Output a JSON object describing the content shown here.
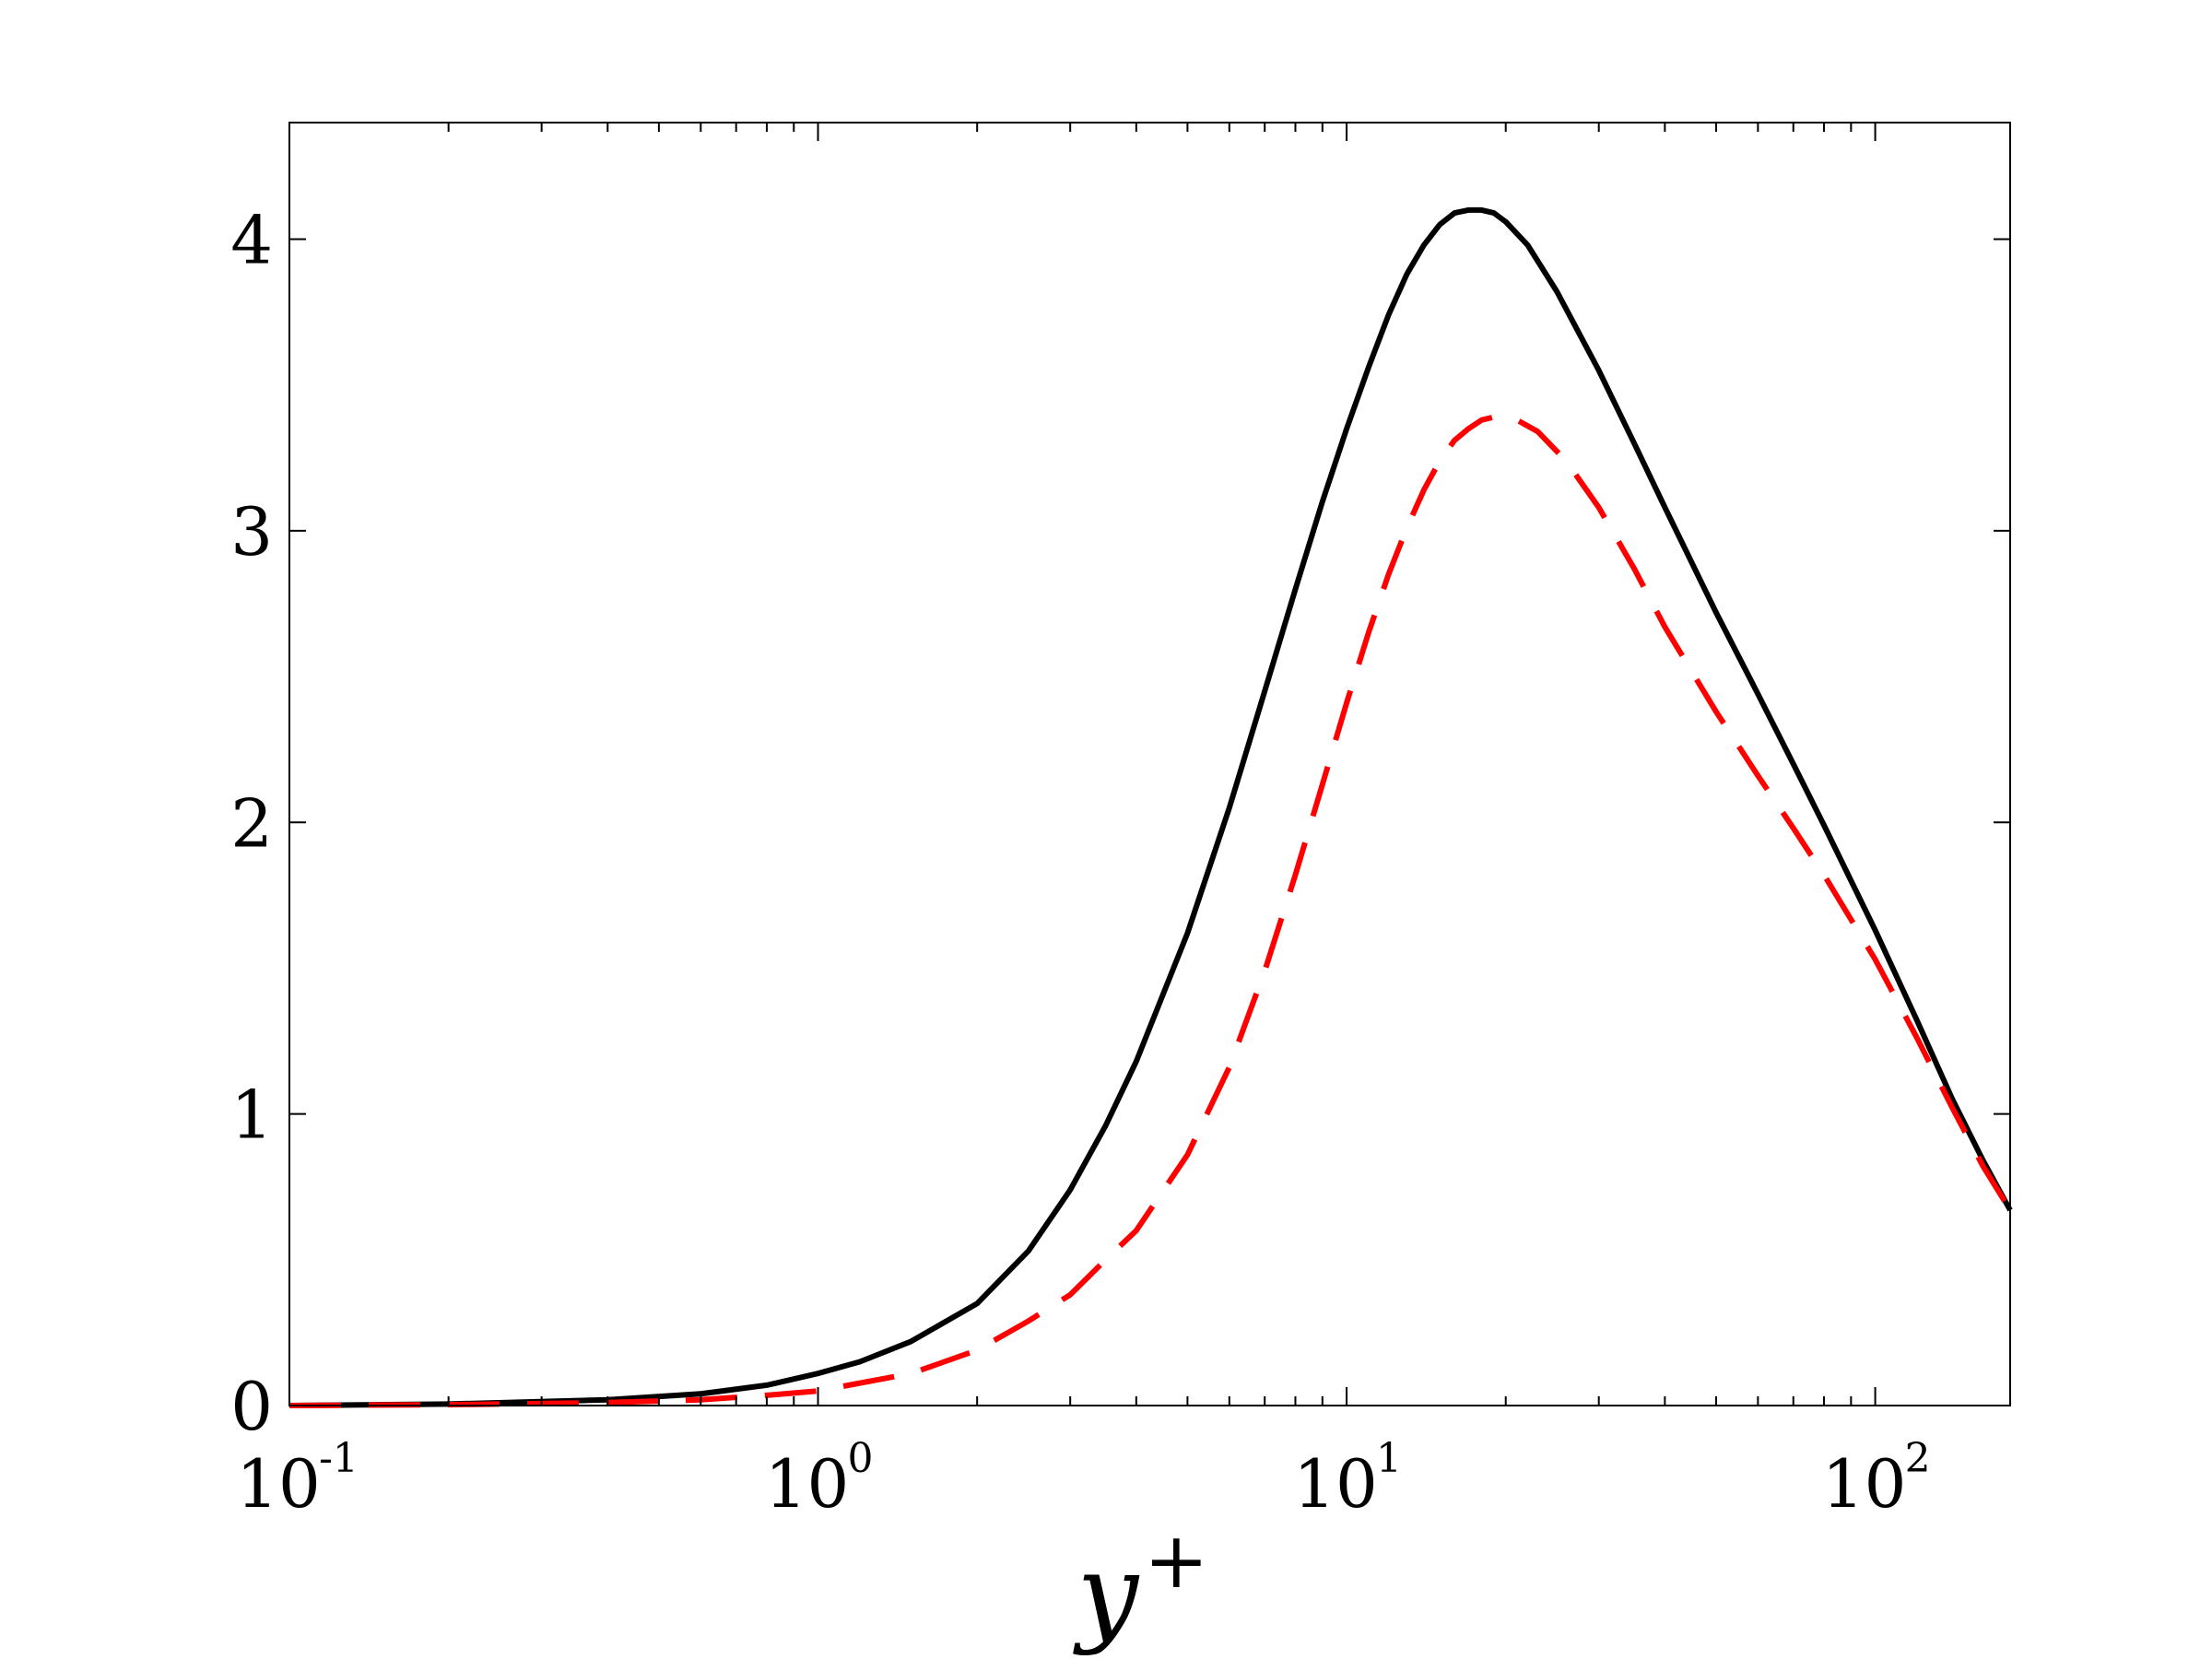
{
  "chart_data": {
    "type": "line",
    "title": "",
    "xlabel": {
      "base": "y",
      "sup": "+"
    },
    "ylabel": "",
    "xscale": "log",
    "xlim": [
      0.1,
      180
    ],
    "ylim": [
      0,
      4.4
    ],
    "xticks": [
      {
        "value": 0.1,
        "base": "10",
        "exp": "-1"
      },
      {
        "value": 1,
        "base": "10",
        "exp": "0"
      },
      {
        "value": 10,
        "base": "10",
        "exp": "1"
      },
      {
        "value": 100,
        "base": "10",
        "exp": "2"
      }
    ],
    "yticks": [
      {
        "value": 0,
        "label": "0"
      },
      {
        "value": 1,
        "label": "1"
      },
      {
        "value": 2,
        "label": "2"
      },
      {
        "value": 3,
        "label": "3"
      },
      {
        "value": 4,
        "label": "4"
      }
    ],
    "grid": false,
    "legend": "none",
    "series": [
      {
        "color": "#000000",
        "style": "solid",
        "points": [
          [
            0.1,
            0.0
          ],
          [
            0.2,
            0.005
          ],
          [
            0.4,
            0.02
          ],
          [
            0.6,
            0.04
          ],
          [
            0.8,
            0.07
          ],
          [
            1.0,
            0.11
          ],
          [
            1.2,
            0.15
          ],
          [
            1.5,
            0.22
          ],
          [
            2.0,
            0.35
          ],
          [
            2.5,
            0.53
          ],
          [
            3.0,
            0.74
          ],
          [
            3.5,
            0.96
          ],
          [
            4.0,
            1.18
          ],
          [
            5.0,
            1.62
          ],
          [
            6.0,
            2.05
          ],
          [
            7.0,
            2.45
          ],
          [
            8.0,
            2.8
          ],
          [
            9.0,
            3.1
          ],
          [
            10.0,
            3.35
          ],
          [
            11.0,
            3.56
          ],
          [
            12.0,
            3.74
          ],
          [
            13.0,
            3.88
          ],
          [
            14.0,
            3.98
          ],
          [
            15.0,
            4.05
          ],
          [
            16.0,
            4.09
          ],
          [
            17.0,
            4.1
          ],
          [
            18.0,
            4.1
          ],
          [
            19.0,
            4.09
          ],
          [
            20.0,
            4.06
          ],
          [
            22.0,
            3.98
          ],
          [
            25.0,
            3.82
          ],
          [
            30.0,
            3.55
          ],
          [
            35.0,
            3.3
          ],
          [
            40.0,
            3.08
          ],
          [
            50.0,
            2.72
          ],
          [
            60.0,
            2.44
          ],
          [
            70.0,
            2.2
          ],
          [
            80.0,
            1.99
          ],
          [
            100.0,
            1.63
          ],
          [
            120.0,
            1.32
          ],
          [
            140.0,
            1.05
          ],
          [
            160.0,
            0.84
          ],
          [
            180.0,
            0.67
          ]
        ]
      },
      {
        "color": "#ff0000",
        "style": "dashed",
        "points": [
          [
            0.1,
            0.0
          ],
          [
            0.2,
            0.003
          ],
          [
            0.4,
            0.01
          ],
          [
            0.6,
            0.02
          ],
          [
            0.8,
            0.035
          ],
          [
            1.0,
            0.05
          ],
          [
            1.5,
            0.11
          ],
          [
            2.0,
            0.19
          ],
          [
            2.5,
            0.29
          ],
          [
            3.0,
            0.38
          ],
          [
            3.5,
            0.5
          ],
          [
            4.0,
            0.6
          ],
          [
            5.0,
            0.86
          ],
          [
            6.0,
            1.16
          ],
          [
            7.0,
            1.49
          ],
          [
            8.0,
            1.82
          ],
          [
            9.0,
            2.13
          ],
          [
            10.0,
            2.41
          ],
          [
            11.0,
            2.65
          ],
          [
            12.0,
            2.85
          ],
          [
            13.0,
            3.01
          ],
          [
            14.0,
            3.14
          ],
          [
            15.0,
            3.24
          ],
          [
            16.0,
            3.31
          ],
          [
            17.0,
            3.35
          ],
          [
            18.0,
            3.38
          ],
          [
            19.0,
            3.39
          ],
          [
            20.0,
            3.39
          ],
          [
            21.0,
            3.38
          ],
          [
            23.0,
            3.34
          ],
          [
            26.0,
            3.24
          ],
          [
            30.0,
            3.08
          ],
          [
            35.0,
            2.87
          ],
          [
            40.0,
            2.67
          ],
          [
            50.0,
            2.38
          ],
          [
            60.0,
            2.16
          ],
          [
            70.0,
            1.98
          ],
          [
            80.0,
            1.82
          ],
          [
            100.0,
            1.53
          ],
          [
            120.0,
            1.26
          ],
          [
            140.0,
            1.02
          ],
          [
            160.0,
            0.82
          ],
          [
            180.0,
            0.67
          ]
        ]
      }
    ]
  }
}
